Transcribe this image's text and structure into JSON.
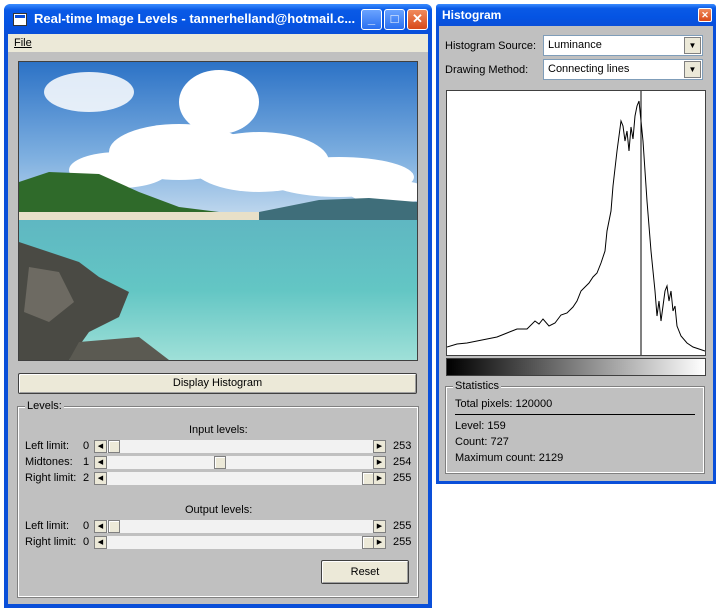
{
  "main_window": {
    "title": "Real-time Image Levels - tannerhelland@hotmail.c...",
    "menu": {
      "file": "File"
    },
    "display_histogram_button": "Display Histogram",
    "levels_group": "Levels:",
    "input_heading": "Input levels:",
    "output_heading": "Output levels:",
    "input_rows": [
      {
        "label": "Left limit:",
        "min": "0",
        "max": "253",
        "fraction": 0.0
      },
      {
        "label": "Midtones:",
        "min": "1",
        "max": "254",
        "fraction": 0.4
      },
      {
        "label": "Right limit:",
        "min": "2",
        "max": "255",
        "fraction": 1.0
      }
    ],
    "output_rows": [
      {
        "label": "Left limit:",
        "min": "0",
        "max": "255",
        "fraction": 0.0
      },
      {
        "label": "Right limit:",
        "min": "0",
        "max": "255",
        "fraction": 1.0
      }
    ],
    "reset_button": "Reset"
  },
  "histogram_window": {
    "title": "Histogram",
    "source_label": "Histogram Source:",
    "source_value": "Luminance",
    "method_label": "Drawing Method:",
    "method_value": "Connecting lines",
    "statistics_group": "Statistics",
    "total_pixels": "Total pixels: 120000",
    "level": "Level: 159",
    "count": "Count: 727",
    "max_count": "Maximum count: 2129"
  },
  "colors": {
    "title_blue": "#0a4fd9",
    "face": "#c0c0c0",
    "close_red": "#d84a1a"
  },
  "icons": [
    "app-icon",
    "minimize-icon",
    "maximize-icon",
    "close-icon",
    "arrow-left-icon",
    "arrow-right-icon",
    "dropdown-arrow-icon"
  ]
}
